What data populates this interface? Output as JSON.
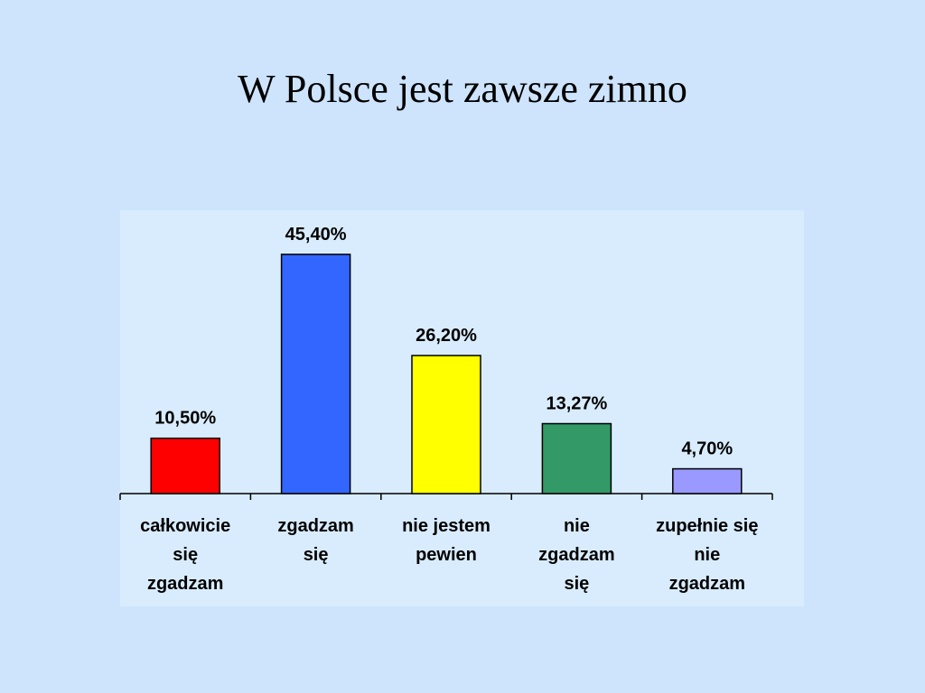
{
  "chart_data": {
    "type": "bar",
    "title": "W Polsce jest zawsze zimno",
    "categories": [
      "całkowicie się zgadzam",
      "zgadzam się",
      "nie jestem pewien",
      "nie zgadzam się",
      "zupełnie się nie zgadzam"
    ],
    "values": [
      10.5,
      45.4,
      26.2,
      13.27,
      4.7
    ],
    "value_labels": [
      "10,50%",
      "45,40%",
      "26,20%",
      "13,27%",
      "4,70%"
    ],
    "colors": [
      "#ff0000",
      "#3366ff",
      "#ffff00",
      "#339966",
      "#9999ff"
    ]
  }
}
